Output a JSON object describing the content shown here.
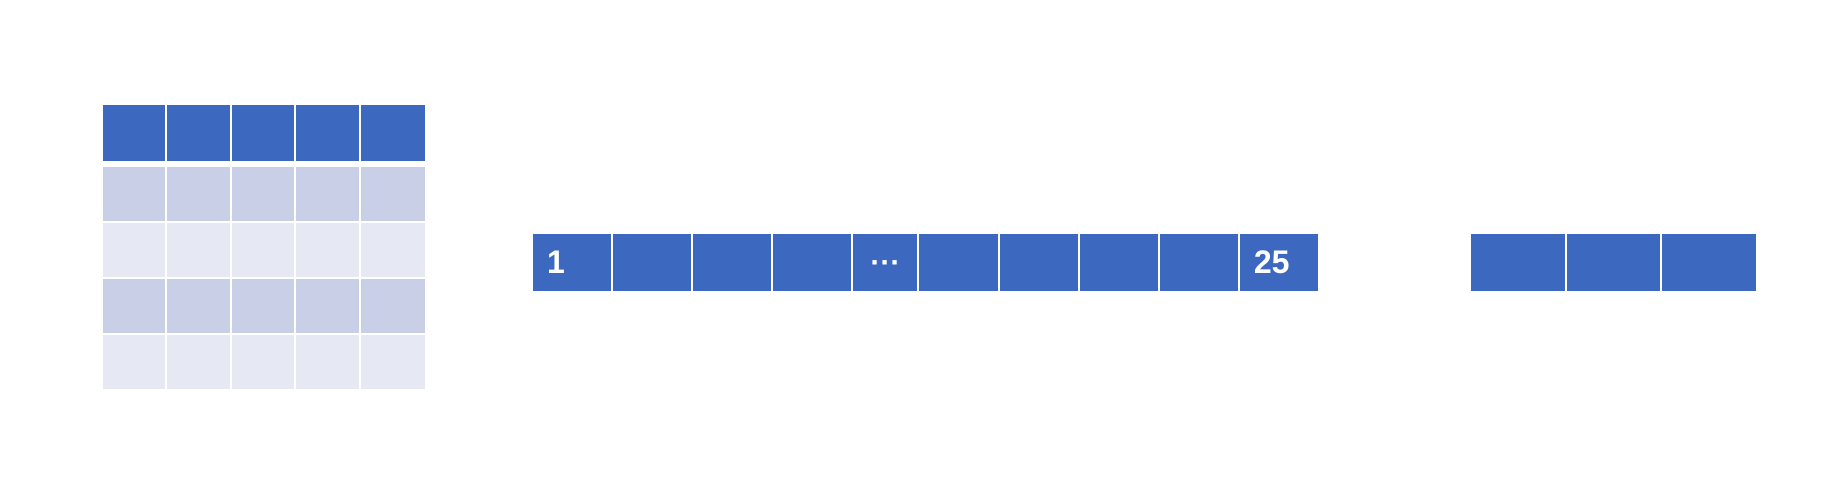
{
  "colors": {
    "header": "#3d68c0",
    "row_dark": "#c8cfe6",
    "row_light": "#e6e9f4",
    "cell_text": "#ffffff"
  },
  "grid": {
    "columns": 5,
    "row_kinds": [
      "header",
      "row_dark",
      "row_light",
      "row_dark",
      "row_light"
    ]
  },
  "strip": {
    "labels": [
      "1",
      "",
      "",
      "",
      "···",
      "",
      "",
      "",
      "",
      "25"
    ]
  },
  "output_strip": {
    "cells": 3
  }
}
